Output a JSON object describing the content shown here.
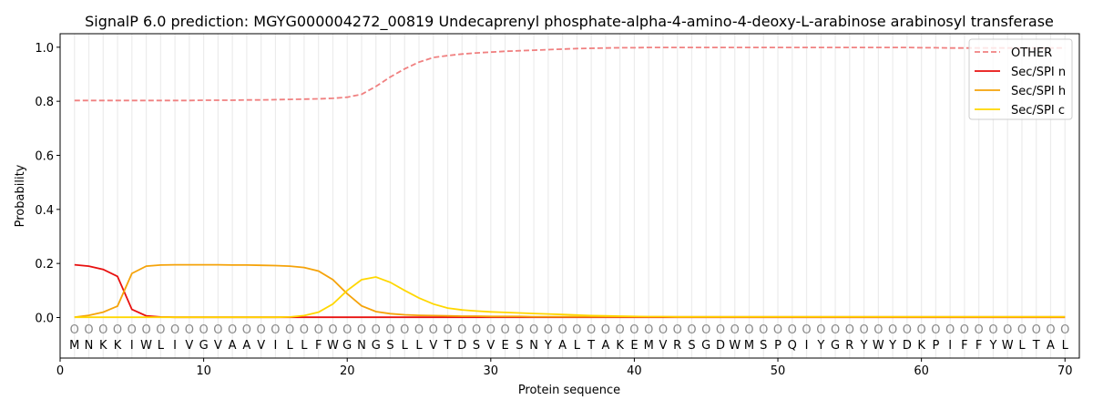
{
  "chart_data": {
    "type": "line",
    "title": "SignalP 6.0 prediction: MGYG000004272_00819 Undecaprenyl phosphate-alpha-4-amino-4-deoxy-L-arabinose arabinosyl transferase",
    "xlabel": "Protein sequence",
    "ylabel": "Probability",
    "xlim": [
      0,
      71
    ],
    "ylim": [
      -0.15,
      1.05
    ],
    "xticks": [
      0,
      10,
      20,
      30,
      40,
      50,
      60,
      70
    ],
    "xtick_labels": [
      "0",
      "10",
      "20",
      "30",
      "40",
      "50",
      "60",
      "70"
    ],
    "yticks": [
      0.0,
      0.2,
      0.4,
      0.6,
      0.8,
      1.0
    ],
    "ytick_labels": [
      "0.0",
      "0.2",
      "0.4",
      "0.6",
      "0.8",
      "1.0"
    ],
    "grid": "vertical",
    "legend_position": "top-right",
    "sequence": [
      "M",
      "N",
      "K",
      "K",
      "I",
      "W",
      "L",
      "I",
      "V",
      "G",
      "V",
      "A",
      "A",
      "V",
      "I",
      "L",
      "L",
      "F",
      "W",
      "G",
      "N",
      "G",
      "S",
      "L",
      "L",
      "V",
      "T",
      "D",
      "S",
      "V",
      "E",
      "S",
      "N",
      "Y",
      "A",
      "L",
      "T",
      "A",
      "K",
      "E",
      "M",
      "V",
      "R",
      "S",
      "G",
      "D",
      "W",
      "M",
      "S",
      "P",
      "Q",
      "I",
      "Y",
      "G",
      "R",
      "Y",
      "W",
      "Y",
      "D",
      "K",
      "P",
      "I",
      "F",
      "F",
      "Y",
      "W",
      "L",
      "T",
      "A",
      "L"
    ],
    "position_markers": [
      "O",
      "O",
      "O",
      "O",
      "O",
      "O",
      "O",
      "O",
      "O",
      "O",
      "O",
      "O",
      "O",
      "O",
      "O",
      "O",
      "O",
      "O",
      "O",
      "O",
      "O",
      "O",
      "O",
      "O",
      "O",
      "O",
      "O",
      "O",
      "O",
      "O",
      "O",
      "O",
      "O",
      "O",
      "O",
      "O",
      "O",
      "O",
      "O",
      "O",
      "O",
      "O",
      "O",
      "O",
      "O",
      "O",
      "O",
      "O",
      "O",
      "O",
      "O",
      "O",
      "O",
      "O",
      "O",
      "O",
      "O",
      "O",
      "O",
      "O",
      "O",
      "O",
      "O",
      "O",
      "O",
      "O",
      "O",
      "O",
      "O",
      "O"
    ],
    "series": [
      {
        "name": "OTHER",
        "color": "#f08080",
        "dash": true,
        "values": [
          0.803,
          0.803,
          0.803,
          0.803,
          0.803,
          0.803,
          0.803,
          0.803,
          0.803,
          0.804,
          0.804,
          0.804,
          0.805,
          0.805,
          0.806,
          0.807,
          0.808,
          0.809,
          0.811,
          0.815,
          0.826,
          0.855,
          0.89,
          0.92,
          0.945,
          0.962,
          0.969,
          0.975,
          0.979,
          0.982,
          0.985,
          0.987,
          0.989,
          0.991,
          0.993,
          0.995,
          0.996,
          0.997,
          0.998,
          0.998,
          0.999,
          0.999,
          0.999,
          0.999,
          0.999,
          0.999,
          0.999,
          0.999,
          0.999,
          0.999,
          0.999,
          0.999,
          0.999,
          0.999,
          0.999,
          0.999,
          0.999,
          0.999,
          0.999,
          0.998,
          0.998,
          0.997,
          0.997,
          0.997,
          0.997,
          0.997,
          0.997,
          0.997,
          0.997,
          0.997
        ]
      },
      {
        "name": "Sec/SPI n",
        "color": "#e8100f",
        "dash": false,
        "values": [
          0.195,
          0.19,
          0.178,
          0.152,
          0.03,
          0.006,
          0.002,
          0.001,
          0.001,
          0.001,
          0.001,
          0.001,
          0.001,
          0.001,
          0.001,
          0.001,
          0.001,
          0.001,
          0.001,
          0.001,
          0.001,
          0.001,
          0.001,
          0.001,
          0.001,
          0.001,
          0.001,
          0.001,
          0.001,
          0.001,
          0.001,
          0.001,
          0.001,
          0.001,
          0.001,
          0.001,
          0.001,
          0.001,
          0.001,
          0.001,
          0.001,
          0.001,
          0.001,
          0.001,
          0.001,
          0.001,
          0.001,
          0.001,
          0.001,
          0.001,
          0.001,
          0.001,
          0.001,
          0.001,
          0.001,
          0.001,
          0.001,
          0.001,
          0.001,
          0.001,
          0.001,
          0.001,
          0.001,
          0.001,
          0.001,
          0.001,
          0.001,
          0.001,
          0.001,
          0.001
        ]
      },
      {
        "name": "Sec/SPI h",
        "color": "#f5a30a",
        "dash": false,
        "values": [
          0.001,
          0.008,
          0.02,
          0.042,
          0.163,
          0.19,
          0.194,
          0.195,
          0.195,
          0.195,
          0.195,
          0.194,
          0.194,
          0.193,
          0.192,
          0.19,
          0.185,
          0.172,
          0.14,
          0.088,
          0.043,
          0.022,
          0.014,
          0.01,
          0.008,
          0.007,
          0.006,
          0.005,
          0.005,
          0.004,
          0.004,
          0.004,
          0.003,
          0.003,
          0.003,
          0.003,
          0.003,
          0.003,
          0.003,
          0.003,
          0.003,
          0.003,
          0.003,
          0.003,
          0.003,
          0.003,
          0.003,
          0.003,
          0.003,
          0.003,
          0.003,
          0.003,
          0.003,
          0.003,
          0.003,
          0.003,
          0.003,
          0.003,
          0.003,
          0.003,
          0.003,
          0.003,
          0.003,
          0.003,
          0.003,
          0.003,
          0.003,
          0.003,
          0.003,
          0.003
        ]
      },
      {
        "name": "Sec/SPI c",
        "color": "#ffd700",
        "dash": false,
        "values": [
          0.001,
          0.001,
          0.001,
          0.001,
          0.001,
          0.001,
          0.001,
          0.001,
          0.001,
          0.001,
          0.001,
          0.001,
          0.001,
          0.001,
          0.001,
          0.002,
          0.007,
          0.02,
          0.05,
          0.1,
          0.14,
          0.15,
          0.13,
          0.1,
          0.072,
          0.05,
          0.035,
          0.028,
          0.024,
          0.021,
          0.019,
          0.017,
          0.015,
          0.013,
          0.011,
          0.009,
          0.007,
          0.006,
          0.005,
          0.004,
          0.003,
          0.003,
          0.002,
          0.002,
          0.002,
          0.002,
          0.002,
          0.002,
          0.002,
          0.002,
          0.002,
          0.002,
          0.002,
          0.002,
          0.002,
          0.002,
          0.002,
          0.002,
          0.002,
          0.002,
          0.002,
          0.002,
          0.002,
          0.002,
          0.002,
          0.002,
          0.002,
          0.002,
          0.002,
          0.002
        ]
      }
    ]
  }
}
